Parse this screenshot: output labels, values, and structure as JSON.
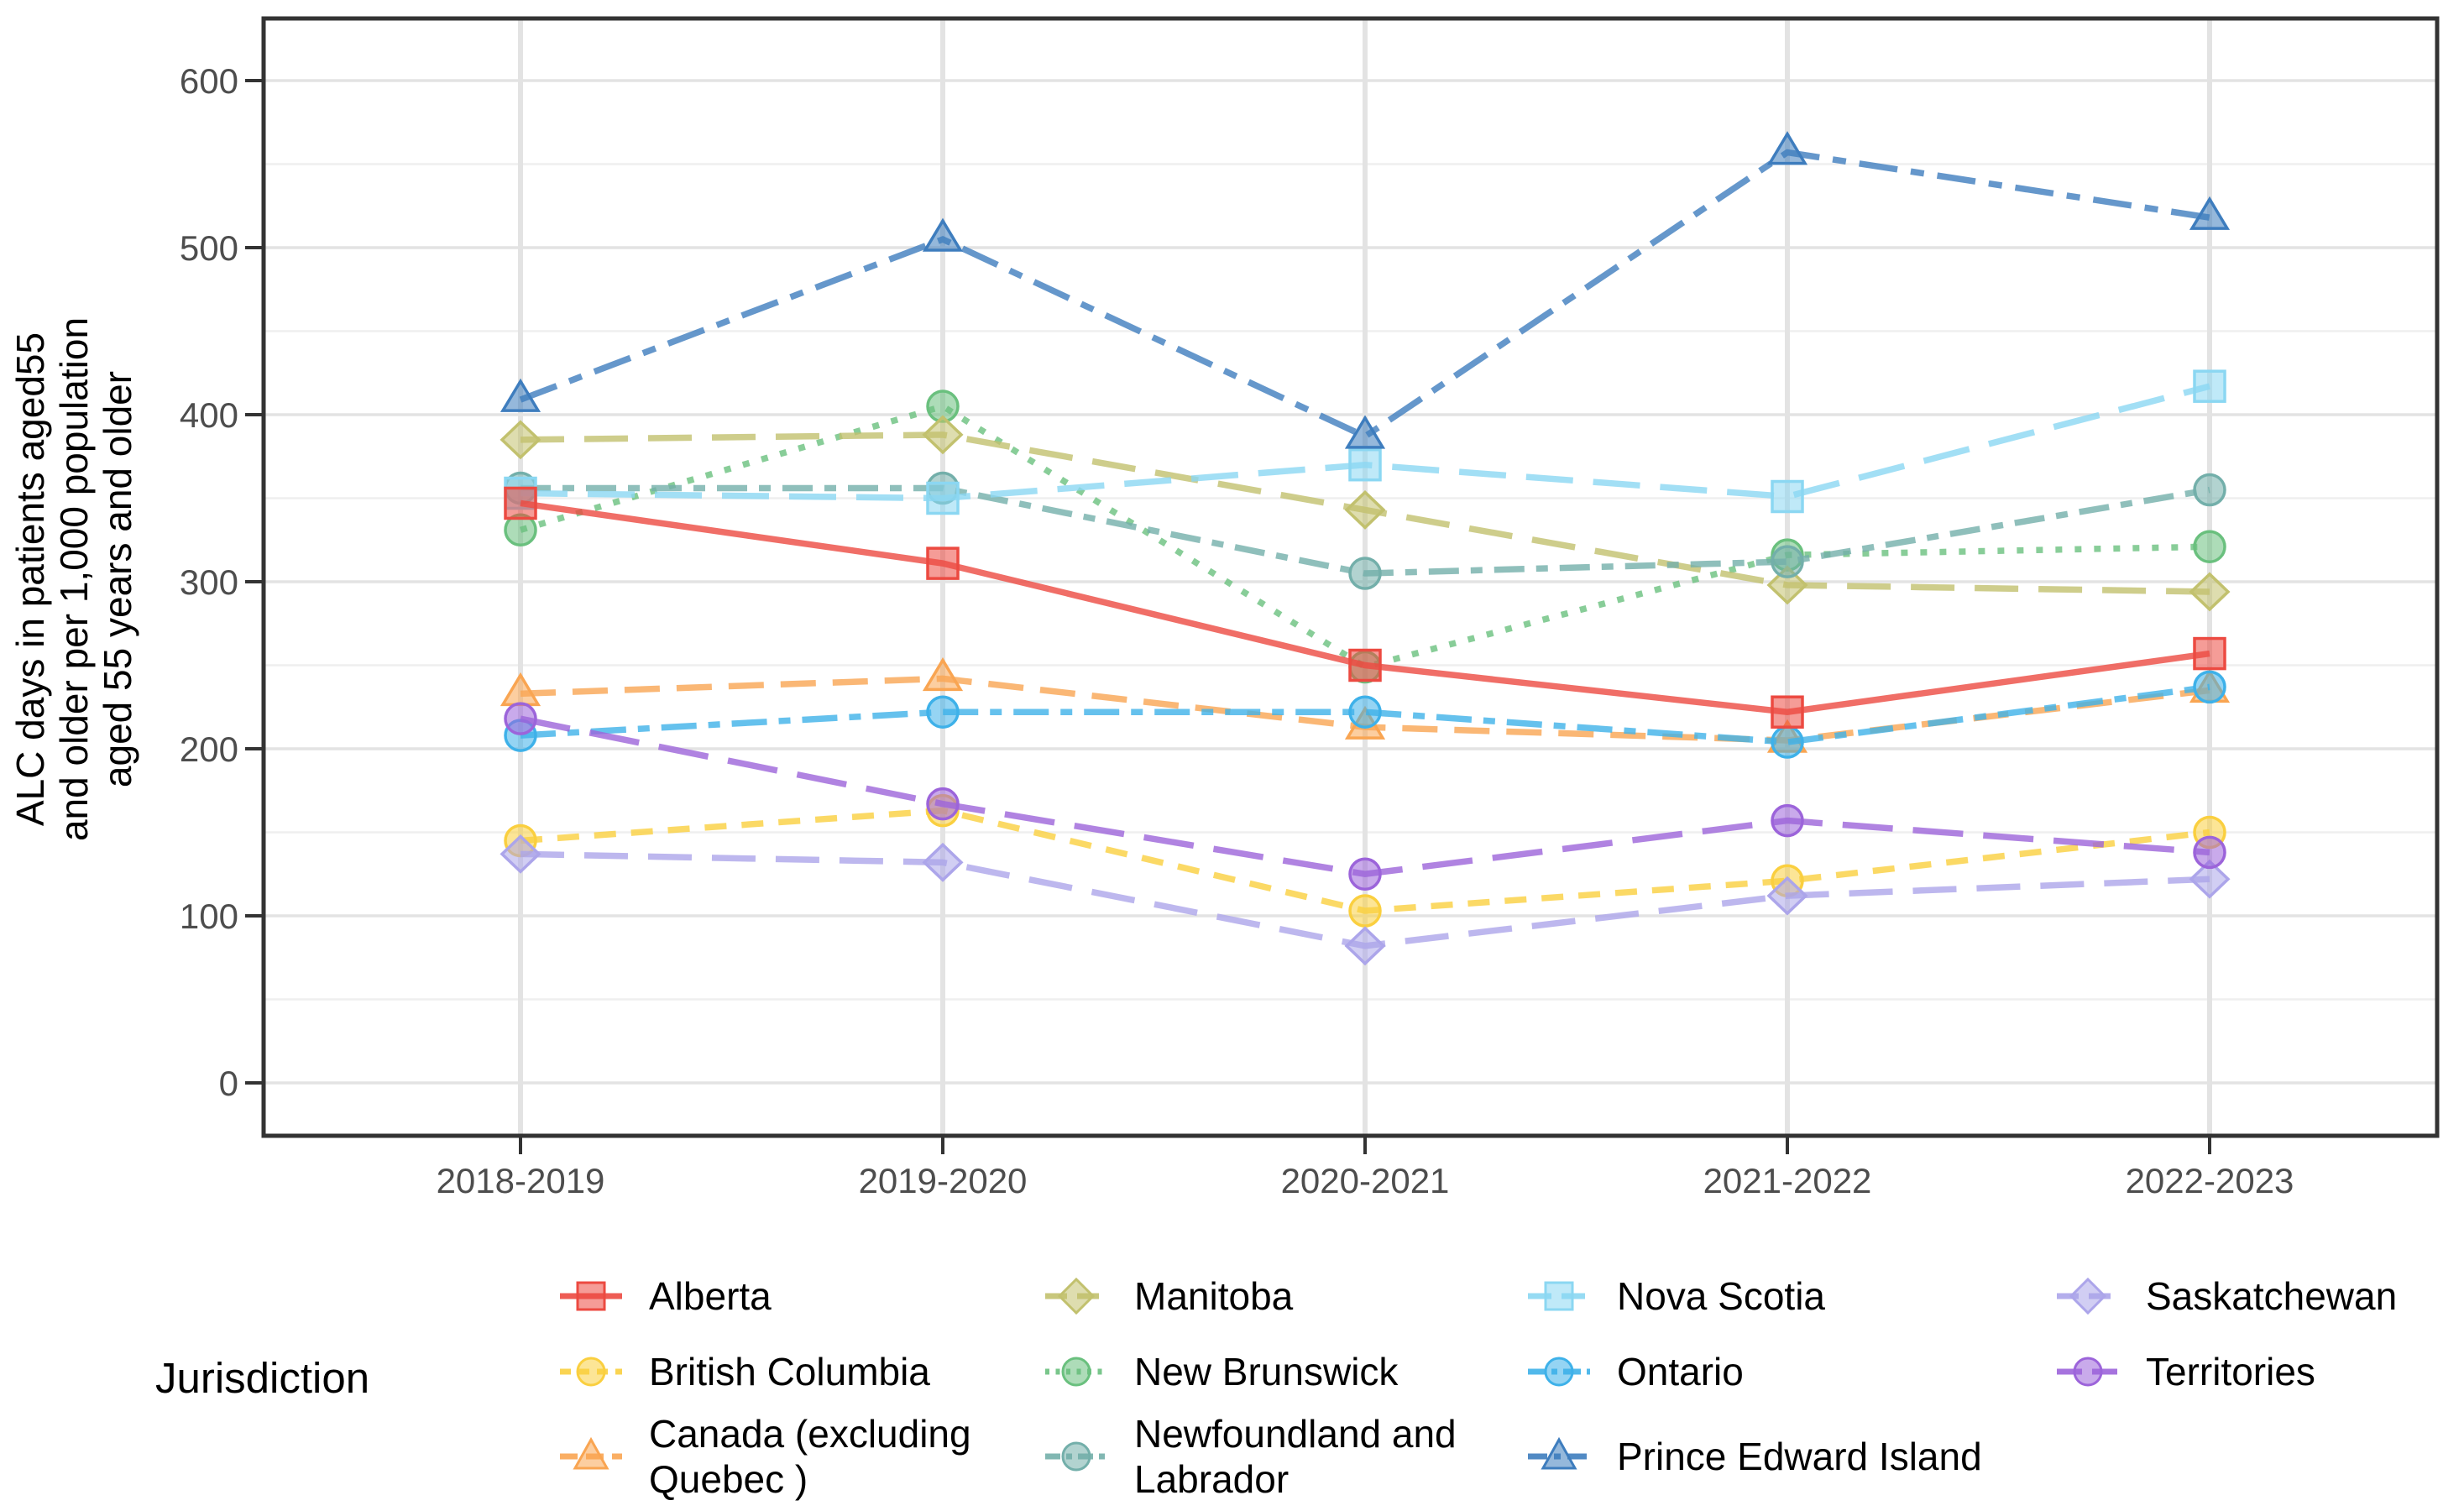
{
  "figure": {
    "background": "#ffffff",
    "y_axis": {
      "title_lines": [
        "ALC days in patients aged55",
        "and older per 1,000 population",
        "aged 55 years and older"
      ],
      "tick_labels": [
        "0",
        "100",
        "200",
        "300",
        "400",
        "500",
        "600"
      ]
    },
    "x_axis": {
      "tick_labels": [
        "2018-2019",
        "2019-2020",
        "2020-2021",
        "2021-2022",
        "2022-2023"
      ]
    },
    "legend": {
      "title": "Jurisdiction"
    }
  },
  "chart_data": {
    "type": "line",
    "title": "",
    "xlabel": "",
    "ylabel": "ALC days in patients aged55 and older per 1,000 population aged 55 years and older",
    "categories": [
      "2018-2019",
      "2019-2020",
      "2020-2021",
      "2021-2022",
      "2022-2023"
    ],
    "ylim": [
      0,
      640
    ],
    "yticks": [
      0,
      100,
      200,
      300,
      400,
      500,
      600
    ],
    "grid": "on",
    "legend_position": "bottom",
    "legend_title": "Jurisdiction",
    "colors": {
      "tick_text": "#4d4d4d",
      "axis_text": "#000000",
      "panel_border": "#333333",
      "grid_major": "#e3e3e3",
      "grid_minor": "#efefef"
    },
    "series": [
      {
        "name": "Alberta",
        "legend_lines": [
          "Alberta"
        ],
        "color": "#ec4a41",
        "dash": "",
        "marker": "square",
        "values": [
          347,
          311,
          250,
          222,
          257
        ]
      },
      {
        "name": "British Columbia",
        "legend_lines": [
          "British Columbia"
        ],
        "color": "#facf3f",
        "dash": "26 18",
        "marker": "circle",
        "values": [
          145,
          163,
          103,
          121,
          150
        ]
      },
      {
        "name": "Canada (excluding Quebec )",
        "legend_lines": [
          "Canada (excluding",
          "Quebec )"
        ],
        "color": "#f9a552",
        "dash": "42 20",
        "marker": "triangle",
        "values": [
          233,
          242,
          213,
          205,
          235
        ]
      },
      {
        "name": "Manitoba",
        "legend_lines": [
          "Manitoba"
        ],
        "color": "#c2c16e",
        "dash": "52 24",
        "marker": "diamond",
        "values": [
          385,
          388,
          343,
          298,
          294
        ]
      },
      {
        "name": "New Brunswick",
        "legend_lines": [
          "New Brunswick"
        ],
        "color": "#6ac07e",
        "dash": "8 15",
        "marker": "circle",
        "values": [
          331,
          405,
          249,
          316,
          321
        ]
      },
      {
        "name": "Newfoundland and Labrador",
        "legend_lines": [
          "Newfoundland and",
          "Labrador"
        ],
        "color": "#73afaa",
        "dash": "36 14 14 14",
        "marker": "circle",
        "values": [
          356,
          356,
          305,
          312,
          355
        ]
      },
      {
        "name": "Nova Scotia",
        "legend_lines": [
          "Nova Scotia"
        ],
        "color": "#8bd7f2",
        "dash": "56 24",
        "marker": "square",
        "values": [
          353,
          350,
          370,
          351,
          417
        ]
      },
      {
        "name": "Ontario",
        "legend_lines": [
          "Ontario"
        ],
        "color": "#3eb1e9",
        "dash": "42 14 14 14",
        "marker": "circle",
        "values": [
          208,
          222,
          222,
          204,
          237
        ]
      },
      {
        "name": "Prince Edward Island",
        "legend_lines": [
          "Prince Edward Island"
        ],
        "color": "#3e7dbe",
        "dash": "46 16 16 16",
        "marker": "triangle",
        "values": [
          409,
          505,
          387,
          557,
          518
        ]
      },
      {
        "name": "Saskatchewan",
        "legend_lines": [
          "Saskatchewan"
        ],
        "color": "#aca5ea",
        "dash": "52 24",
        "marker": "diamond",
        "values": [
          137,
          132,
          82,
          112,
          122
        ]
      },
      {
        "name": "Territories",
        "legend_lines": [
          "Territories"
        ],
        "color": "#9c64da",
        "dash": "60 24",
        "marker": "circle",
        "values": [
          218,
          167,
          125,
          157,
          138
        ]
      }
    ]
  }
}
